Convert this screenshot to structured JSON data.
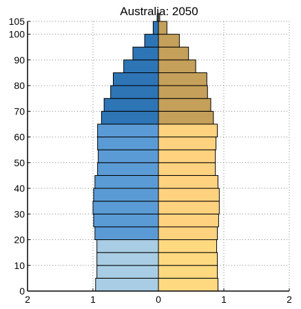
{
  "chart_data": {
    "type": "bar",
    "orientation": "horizontal",
    "chart_subtype": "population-pyramid",
    "title": "Australia: 2050",
    "xlabel": "",
    "ylabel": "",
    "xlim": [
      -2,
      2
    ],
    "ylim": [
      0,
      105
    ],
    "grid": true,
    "grid_style": "dotted",
    "legend": "none",
    "x_ticks": [
      {
        "value": -2,
        "label": "2"
      },
      {
        "value": -1,
        "label": "1"
      },
      {
        "value": 0,
        "label": "0"
      },
      {
        "value": 1,
        "label": "1"
      },
      {
        "value": 2,
        "label": "2"
      }
    ],
    "y_ticks": [
      {
        "value": 0,
        "label": "0"
      },
      {
        "value": 10,
        "label": "10"
      },
      {
        "value": 20,
        "label": "20"
      },
      {
        "value": 30,
        "label": "30"
      },
      {
        "value": 40,
        "label": "40"
      },
      {
        "value": 50,
        "label": "50"
      },
      {
        "value": 60,
        "label": "60"
      },
      {
        "value": 70,
        "label": "70"
      },
      {
        "value": 80,
        "label": "80"
      },
      {
        "value": 90,
        "label": "90"
      },
      {
        "value": 100,
        "label": "100"
      },
      {
        "value": 105,
        "label": "105"
      }
    ],
    "age_groups": [
      {
        "age_start": 0,
        "age_end": 5,
        "left": 0.96,
        "right": 0.91
      },
      {
        "age_start": 5,
        "age_end": 10,
        "left": 0.94,
        "right": 0.9
      },
      {
        "age_start": 10,
        "age_end": 15,
        "left": 0.94,
        "right": 0.9
      },
      {
        "age_start": 15,
        "age_end": 20,
        "left": 0.94,
        "right": 0.89
      },
      {
        "age_start": 20,
        "age_end": 25,
        "left": 0.97,
        "right": 0.9
      },
      {
        "age_start": 25,
        "age_end": 30,
        "left": 0.99,
        "right": 0.92
      },
      {
        "age_start": 30,
        "age_end": 35,
        "left": 1.0,
        "right": 0.93
      },
      {
        "age_start": 35,
        "age_end": 40,
        "left": 0.99,
        "right": 0.93
      },
      {
        "age_start": 40,
        "age_end": 45,
        "left": 0.97,
        "right": 0.91
      },
      {
        "age_start": 45,
        "age_end": 50,
        "left": 0.93,
        "right": 0.87
      },
      {
        "age_start": 50,
        "age_end": 55,
        "left": 0.92,
        "right": 0.87
      },
      {
        "age_start": 55,
        "age_end": 60,
        "left": 0.93,
        "right": 0.88
      },
      {
        "age_start": 60,
        "age_end": 65,
        "left": 0.93,
        "right": 0.9
      },
      {
        "age_start": 65,
        "age_end": 70,
        "left": 0.87,
        "right": 0.84
      },
      {
        "age_start": 70,
        "age_end": 75,
        "left": 0.83,
        "right": 0.8
      },
      {
        "age_start": 75,
        "age_end": 80,
        "left": 0.73,
        "right": 0.75
      },
      {
        "age_start": 80,
        "age_end": 85,
        "left": 0.69,
        "right": 0.74
      },
      {
        "age_start": 85,
        "age_end": 90,
        "left": 0.53,
        "right": 0.57
      },
      {
        "age_start": 90,
        "age_end": 95,
        "left": 0.39,
        "right": 0.46
      },
      {
        "age_start": 95,
        "age_end": 100,
        "left": 0.21,
        "right": 0.32
      },
      {
        "age_start": 100,
        "age_end": 105,
        "left": 0.08,
        "right": 0.13
      },
      {
        "age_start": 105,
        "age_end": 108,
        "left": 0.02,
        "right": 0.02
      }
    ],
    "colors": {
      "left_young": "#a8cde4",
      "left_mid": "#5b9bd5",
      "left_old": "#2e75b6",
      "right_young": "#ffd980",
      "right_mid": "#ffd27f",
      "right_old": "#c5a05a",
      "bar_edge": "#000000",
      "grid": "#808080",
      "axis": "#000000"
    },
    "color_bands": [
      {
        "from_age": 0,
        "to_age": 20,
        "left": "left_young",
        "right": "right_young"
      },
      {
        "from_age": 20,
        "to_age": 65,
        "left": "left_mid",
        "right": "right_mid"
      },
      {
        "from_age": 65,
        "to_age": 110,
        "left": "left_old",
        "right": "right_old"
      }
    ]
  }
}
